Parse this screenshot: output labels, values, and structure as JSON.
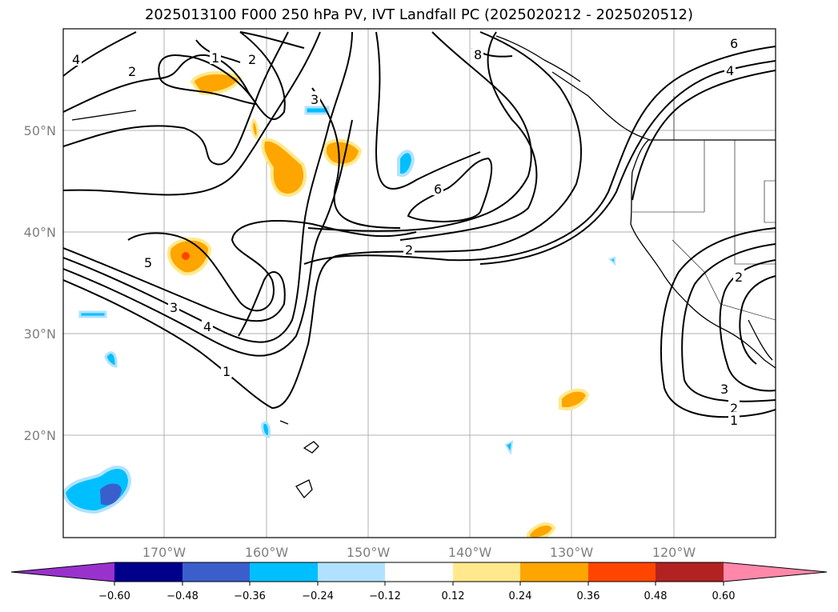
{
  "title": "2025013100 F000 250 hPa PV, IVT Landfall PC (2025020212 - 2025020512)",
  "map": {
    "lat_labels": [
      "50°N",
      "40°N",
      "30°N",
      "20°N"
    ],
    "lon_labels": [
      "170°W",
      "160°W",
      "150°W",
      "140°W",
      "130°W",
      "120°W"
    ],
    "contour_labels": [
      "4",
      "2",
      "1",
      "2",
      "3",
      "8",
      "6",
      "4",
      "6",
      "2",
      "5",
      "3",
      "4",
      "1",
      "2",
      "3",
      "2",
      "1"
    ]
  },
  "colorbar": {
    "ticks": [
      "−0.60",
      "−0.48",
      "−0.36",
      "−0.24",
      "−0.12",
      "0.12",
      "0.24",
      "0.36",
      "0.48",
      "0.60"
    ],
    "colors": [
      "#9932cc",
      "#00008b",
      "#3a5fcd",
      "#00bfff",
      "#b0e2ff",
      "#ffffff",
      "#ffe98c",
      "#ffa500",
      "#ff4500",
      "#b22222",
      "#ff88aa"
    ]
  }
}
